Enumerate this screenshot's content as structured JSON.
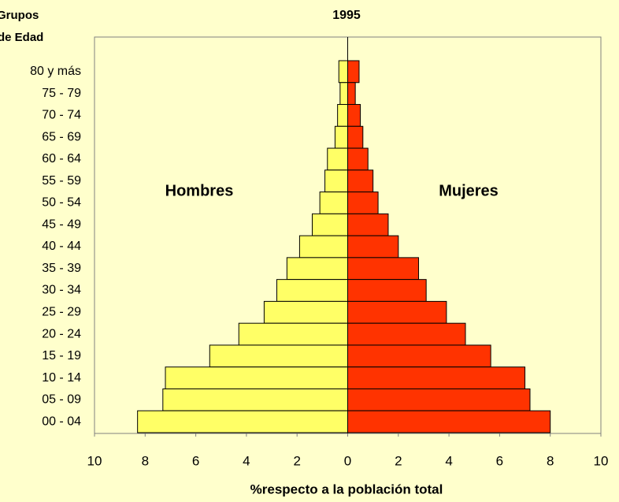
{
  "chart_data": {
    "type": "pyramid",
    "title": "1995",
    "ylabel": [
      "Grupos",
      "de Edad"
    ],
    "xlabel": "%respecto a la población total",
    "categories": [
      "80 y más",
      "75 - 79",
      "70 - 74",
      "65 - 69",
      "60 - 64",
      "55 - 59",
      "50 - 54",
      "45 - 49",
      "40 - 44",
      "35 - 39",
      "30 - 34",
      "25 - 29",
      "20 - 24",
      "15 - 19",
      "10 - 14",
      "05 - 09",
      "00 - 04"
    ],
    "series": [
      {
        "name": "Hombres",
        "color": "#ffff66",
        "values": [
          -0.35,
          -0.3,
          -0.4,
          -0.5,
          -0.8,
          -0.9,
          -1.1,
          -1.4,
          -1.9,
          -2.4,
          -2.8,
          -3.3,
          -4.3,
          -5.45,
          -7.2,
          -7.3,
          -8.3
        ]
      },
      {
        "name": "Mujeres",
        "color": "#ff3300",
        "values": [
          0.45,
          0.3,
          0.5,
          0.6,
          0.8,
          1.0,
          1.2,
          1.6,
          2.0,
          2.8,
          3.1,
          3.9,
          4.65,
          5.65,
          7.0,
          7.2,
          8.0
        ]
      }
    ],
    "xlim": [
      -10,
      10
    ],
    "xticks": [
      {
        "value": -10,
        "label": "10"
      },
      {
        "value": -8,
        "label": "8"
      },
      {
        "value": -6,
        "label": "6"
      },
      {
        "value": -4,
        "label": "4"
      },
      {
        "value": -2,
        "label": "2"
      },
      0,
      2,
      4,
      6,
      8,
      10
    ],
    "grid": false
  }
}
